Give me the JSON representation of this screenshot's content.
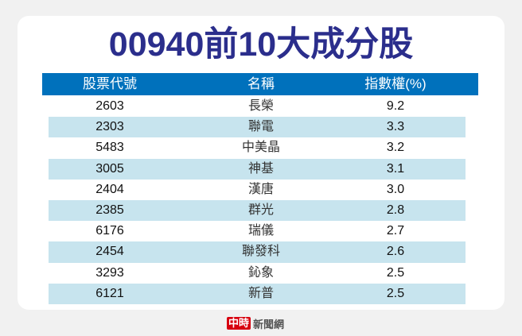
{
  "title": "00940前10大成分股",
  "table": {
    "headers": [
      "股票代號",
      "名稱",
      "指數權(%)"
    ],
    "rows": [
      [
        "2603",
        "長榮",
        "9.2"
      ],
      [
        "2303",
        "聯電",
        "3.3"
      ],
      [
        "5483",
        "中美晶",
        "3.2"
      ],
      [
        "3005",
        "神基",
        "3.1"
      ],
      [
        "2404",
        "漢唐",
        "3.0"
      ],
      [
        "2385",
        "群光",
        "2.8"
      ],
      [
        "6176",
        "瑞儀",
        "2.7"
      ],
      [
        "2454",
        "聯發科",
        "2.6"
      ],
      [
        "3293",
        "鈊象",
        "2.5"
      ],
      [
        "6121",
        "新普",
        "2.5"
      ]
    ]
  },
  "footer": {
    "logo": "中時",
    "text": "新聞網"
  },
  "colors": {
    "title": "#2b2e8c",
    "header": "#0071bc",
    "alt_row": "#c7e4ee"
  }
}
